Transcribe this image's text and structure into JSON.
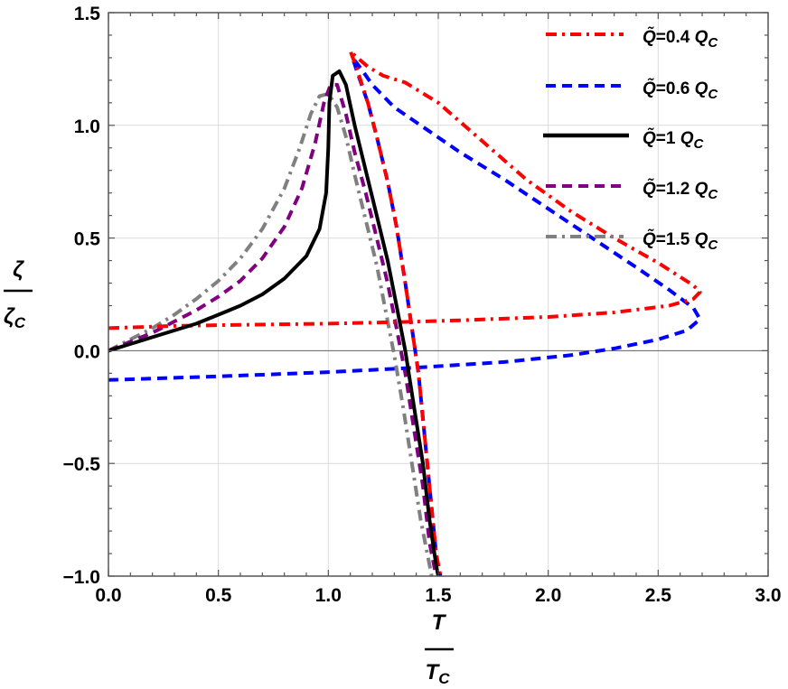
{
  "chart_data": {
    "type": "line",
    "title": "",
    "xlabel": "T / T_C",
    "ylabel": "ζ / ζ_C",
    "xlabel_parts": {
      "numerator": "T",
      "denominator": "T",
      "denominator_sub": "C"
    },
    "ylabel_parts": {
      "numerator": "ζ",
      "denominator": "ζ",
      "denominator_sub": "C"
    },
    "xlim": [
      0,
      3
    ],
    "ylim": [
      -1,
      1.5
    ],
    "xticks": [
      0,
      0.5,
      1,
      1.5,
      2,
      2.5,
      3
    ],
    "xtick_labels": [
      "0.0",
      "0.5",
      "1.0",
      "1.5",
      "2.0",
      "2.5",
      "3.0"
    ],
    "yticks": [
      -1,
      -0.5,
      0,
      0.5,
      1,
      1.5
    ],
    "ytick_labels": [
      "−1.0",
      "−0.5",
      "0.0",
      "0.5",
      "1.0",
      "1.5"
    ],
    "grid": true,
    "legend_position": "upper right",
    "series": [
      {
        "name": "Q̃=0.4 Q_C",
        "label_value": "0.4",
        "color": "#ff0000",
        "style": "dashdot",
        "points": [
          [
            0.0,
            0.1
          ],
          [
            0.3,
            0.11
          ],
          [
            0.6,
            0.115
          ],
          [
            1.0,
            0.12
          ],
          [
            1.35,
            0.128
          ],
          [
            1.6,
            0.135
          ],
          [
            2.0,
            0.15
          ],
          [
            2.3,
            0.17
          ],
          [
            2.55,
            0.2
          ],
          [
            2.66,
            0.23
          ],
          [
            2.69,
            0.26
          ],
          [
            2.66,
            0.29
          ],
          [
            2.5,
            0.39
          ],
          [
            2.3,
            0.5
          ],
          [
            2.1,
            0.62
          ],
          [
            1.9,
            0.76
          ],
          [
            1.7,
            0.93
          ],
          [
            1.5,
            1.1
          ],
          [
            1.35,
            1.19
          ],
          [
            1.25,
            1.22
          ],
          [
            1.18,
            1.26
          ],
          [
            1.12,
            1.31
          ],
          [
            1.1,
            1.33
          ],
          [
            1.13,
            1.25
          ],
          [
            1.18,
            1.1
          ],
          [
            1.22,
            0.95
          ],
          [
            1.27,
            0.75
          ],
          [
            1.31,
            0.55
          ],
          [
            1.35,
            0.3
          ],
          [
            1.38,
            0.1
          ],
          [
            1.41,
            -0.1
          ],
          [
            1.44,
            -0.4
          ],
          [
            1.47,
            -0.7
          ],
          [
            1.49,
            -0.9
          ],
          [
            1.51,
            -1.0
          ]
        ]
      },
      {
        "name": "Q̃=0.6 Q_C",
        "label_value": "0.6",
        "color": "#0000ff",
        "style": "dashed",
        "points": [
          [
            0.0,
            -0.13
          ],
          [
            0.3,
            -0.12
          ],
          [
            0.6,
            -0.11
          ],
          [
            1.0,
            -0.095
          ],
          [
            1.4,
            -0.075
          ],
          [
            1.8,
            -0.05
          ],
          [
            2.1,
            -0.02
          ],
          [
            2.3,
            0.01
          ],
          [
            2.5,
            0.05
          ],
          [
            2.63,
            0.09
          ],
          [
            2.69,
            0.14
          ],
          [
            2.66,
            0.19
          ],
          [
            2.55,
            0.27
          ],
          [
            2.4,
            0.37
          ],
          [
            2.2,
            0.5
          ],
          [
            2.0,
            0.63
          ],
          [
            1.8,
            0.76
          ],
          [
            1.6,
            0.88
          ],
          [
            1.45,
            0.98
          ],
          [
            1.3,
            1.08
          ],
          [
            1.2,
            1.18
          ],
          [
            1.15,
            1.25
          ],
          [
            1.11,
            1.3
          ],
          [
            1.13,
            1.24
          ],
          [
            1.18,
            1.1
          ],
          [
            1.22,
            0.95
          ],
          [
            1.27,
            0.75
          ],
          [
            1.31,
            0.55
          ],
          [
            1.35,
            0.3
          ],
          [
            1.38,
            0.1
          ],
          [
            1.41,
            -0.1
          ],
          [
            1.44,
            -0.4
          ],
          [
            1.47,
            -0.7
          ],
          [
            1.49,
            -0.9
          ],
          [
            1.51,
            -1.0
          ]
        ]
      },
      {
        "name": "Q̃=1 Q_C",
        "label_value": "1",
        "color": "#000000",
        "style": "solid",
        "points": [
          [
            0.0,
            0.0
          ],
          [
            0.1,
            0.03
          ],
          [
            0.2,
            0.06
          ],
          [
            0.3,
            0.09
          ],
          [
            0.4,
            0.12
          ],
          [
            0.5,
            0.16
          ],
          [
            0.6,
            0.2
          ],
          [
            0.7,
            0.25
          ],
          [
            0.8,
            0.32
          ],
          [
            0.9,
            0.42
          ],
          [
            0.96,
            0.54
          ],
          [
            0.99,
            0.7
          ],
          [
            1.0,
            0.9
          ],
          [
            1.005,
            1.1
          ],
          [
            1.02,
            1.22
          ],
          [
            1.05,
            1.24
          ],
          [
            1.08,
            1.18
          ],
          [
            1.12,
            1.0
          ],
          [
            1.17,
            0.8
          ],
          [
            1.22,
            0.6
          ],
          [
            1.27,
            0.4
          ],
          [
            1.31,
            0.2
          ],
          [
            1.35,
            0.0
          ],
          [
            1.39,
            -0.25
          ],
          [
            1.43,
            -0.5
          ],
          [
            1.46,
            -0.75
          ],
          [
            1.49,
            -0.95
          ],
          [
            1.5,
            -1.0
          ]
        ]
      },
      {
        "name": "Q̃=1.2 Q_C",
        "label_value": "1.2",
        "color": "#800080",
        "style": "dashed",
        "points": [
          [
            0.0,
            0.0
          ],
          [
            0.1,
            0.04
          ],
          [
            0.2,
            0.08
          ],
          [
            0.3,
            0.13
          ],
          [
            0.4,
            0.18
          ],
          [
            0.5,
            0.24
          ],
          [
            0.6,
            0.31
          ],
          [
            0.7,
            0.41
          ],
          [
            0.8,
            0.55
          ],
          [
            0.88,
            0.72
          ],
          [
            0.94,
            0.92
          ],
          [
            0.98,
            1.1
          ],
          [
            1.01,
            1.18
          ],
          [
            1.04,
            1.18
          ],
          [
            1.08,
            1.05
          ],
          [
            1.12,
            0.88
          ],
          [
            1.17,
            0.7
          ],
          [
            1.22,
            0.5
          ],
          [
            1.27,
            0.3
          ],
          [
            1.31,
            0.1
          ],
          [
            1.35,
            -0.1
          ],
          [
            1.39,
            -0.35
          ],
          [
            1.43,
            -0.6
          ],
          [
            1.46,
            -0.85
          ],
          [
            1.49,
            -1.0
          ]
        ]
      },
      {
        "name": "Q̃=1.5 Q_C",
        "label_value": "1.5",
        "color": "#808080",
        "style": "dashdot",
        "points": [
          [
            0.0,
            0.0
          ],
          [
            0.1,
            0.05
          ],
          [
            0.2,
            0.1
          ],
          [
            0.3,
            0.16
          ],
          [
            0.4,
            0.23
          ],
          [
            0.5,
            0.31
          ],
          [
            0.6,
            0.41
          ],
          [
            0.7,
            0.54
          ],
          [
            0.8,
            0.72
          ],
          [
            0.87,
            0.9
          ],
          [
            0.92,
            1.05
          ],
          [
            0.96,
            1.13
          ],
          [
            1.0,
            1.14
          ],
          [
            1.04,
            1.08
          ],
          [
            1.08,
            0.95
          ],
          [
            1.12,
            0.78
          ],
          [
            1.17,
            0.58
          ],
          [
            1.22,
            0.38
          ],
          [
            1.26,
            0.18
          ],
          [
            1.3,
            -0.02
          ],
          [
            1.34,
            -0.25
          ],
          [
            1.38,
            -0.5
          ],
          [
            1.42,
            -0.75
          ],
          [
            1.46,
            -0.95
          ],
          [
            1.47,
            -1.0
          ]
        ]
      }
    ]
  },
  "legend": {
    "prefix": "Q̃=",
    "unit": "Q",
    "unit_sub": "C"
  }
}
